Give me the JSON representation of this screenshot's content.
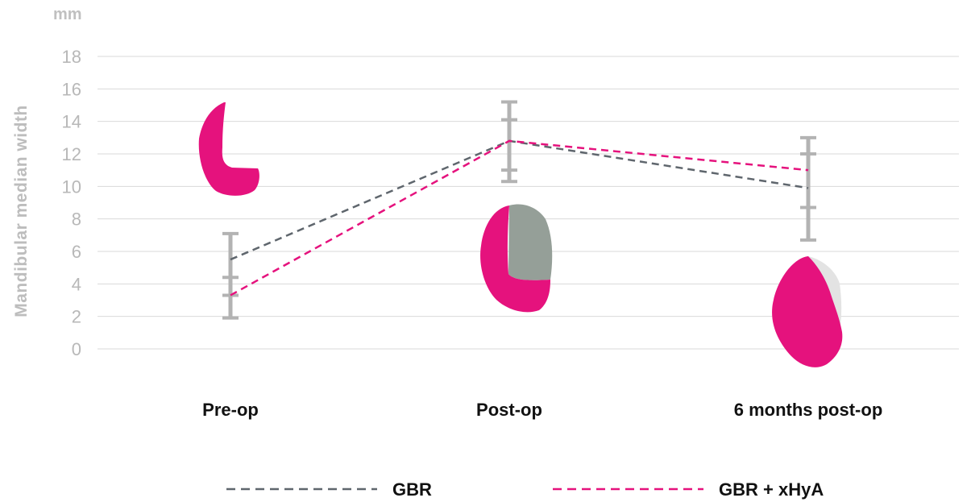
{
  "chart_data": {
    "type": "line",
    "unit_label": "mm",
    "ylabel": "Mandibular median width",
    "xlabel": "",
    "ylim": [
      0,
      18
    ],
    "yticks": [
      0,
      2,
      4,
      6,
      8,
      10,
      12,
      14,
      16,
      18
    ],
    "categories": [
      "Pre-op",
      "Post-op",
      "6 months post-op"
    ],
    "grid": true,
    "legend_position": "bottom",
    "series": [
      {
        "name": "GBR",
        "color": "#5f666d",
        "style": "dashed",
        "values": [
          5.5,
          12.8,
          9.9
        ],
        "error_low": [
          1.9,
          10.3,
          6.7
        ],
        "error_high": [
          7.1,
          15.2,
          13.0
        ]
      },
      {
        "name": "GBR + xHyA",
        "color": "#e5127d",
        "style": "dashed",
        "values": [
          3.3,
          12.8,
          11.0
        ],
        "error_low": [
          3.3,
          11.0,
          8.7
        ],
        "error_high": [
          4.4,
          14.1,
          12.0
        ]
      }
    ],
    "colors": {
      "grid": "#d9d9d9",
      "error_bar": "#b3b3b3",
      "magenta": "#e5127d",
      "gray_fill": "#959f98",
      "light_fill": "#e3e3e3"
    }
  }
}
